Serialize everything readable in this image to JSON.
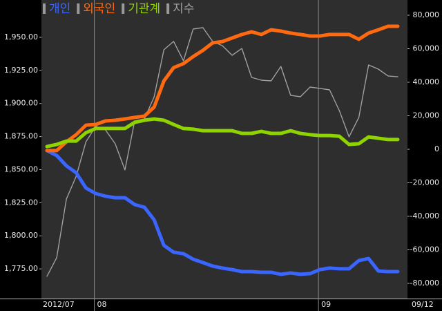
{
  "chart_data": {
    "type": "line",
    "categories": [
      "2012/07",
      null,
      null,
      null,
      null,
      "08",
      null,
      null,
      null,
      null,
      null,
      null,
      null,
      null,
      null,
      null,
      null,
      null,
      null,
      null,
      null,
      null,
      null,
      null,
      null,
      null,
      null,
      null,
      "09",
      null,
      null,
      null,
      null,
      null,
      null,
      null,
      "09/12"
    ],
    "ylim": [
      1752.6,
      1978.2
    ],
    "yticks": [
      {
        "value": 1775,
        "label": "1,775.00"
      },
      {
        "value": 1800,
        "label": "1,800.00"
      },
      {
        "value": 1825,
        "label": "1,825.00"
      },
      {
        "value": 1850,
        "label": "1,850.00"
      },
      {
        "value": 1875,
        "label": "1,875.00"
      },
      {
        "value": 1900,
        "label": "1,900.00"
      },
      {
        "value": 1925,
        "label": "1,925.00"
      },
      {
        "value": 1950,
        "label": "1,950.00"
      }
    ],
    "y2lim": [
      -89072,
      89072
    ],
    "y2ticks": [
      {
        "value": -80000,
        "label": "-80,000"
      },
      {
        "value": -60000,
        "label": "-60,000"
      },
      {
        "value": -40000,
        "label": "-40,000"
      },
      {
        "value": -20000,
        "label": "-20,000"
      },
      0,
      {
        "value": 20000,
        "label": "20,000"
      },
      {
        "value": 40000,
        "label": "40,000"
      },
      {
        "value": 60000,
        "label": "60,000"
      },
      {
        "value": 80000,
        "label": "80,000"
      }
    ],
    "series": [
      {
        "name": "개인",
        "color": "#3a66ff",
        "axis": "y2",
        "values": [
          -800,
          -3700,
          -9900,
          -14000,
          -23100,
          -26400,
          -28000,
          -28900,
          -28900,
          -33000,
          -34600,
          -42100,
          -57300,
          -61400,
          -62300,
          -65600,
          -67600,
          -69700,
          -70900,
          -71800,
          -73000,
          -73000,
          -73400,
          -73400,
          -74600,
          -73800,
          -74600,
          -74200,
          -71800,
          -70900,
          -71300,
          -71300,
          -66400,
          -65200,
          -72600,
          -73000,
          -73000
        ]
      },
      {
        "name": "외국인",
        "color": "#ff6a10",
        "axis": "y2",
        "values": [
          -800,
          -800,
          4500,
          8700,
          14400,
          14800,
          16900,
          17300,
          18100,
          19000,
          19800,
          25200,
          40800,
          48700,
          51100,
          55300,
          59000,
          63500,
          64300,
          66400,
          68500,
          70100,
          68500,
          71300,
          70500,
          69300,
          68500,
          67600,
          67600,
          68500,
          68500,
          68500,
          65600,
          69300,
          71300,
          73400,
          73400
        ]
      },
      {
        "name": "기관계",
        "color": "#8fd400",
        "axis": "y2",
        "values": [
          1600,
          2900,
          4900,
          4900,
          9900,
          12400,
          12400,
          12400,
          12400,
          16100,
          17300,
          18100,
          17300,
          14800,
          12400,
          12000,
          11100,
          11100,
          11100,
          11100,
          9500,
          9500,
          10700,
          9500,
          9500,
          11100,
          9500,
          8700,
          8200,
          8200,
          7800,
          2900,
          3300,
          7400,
          6600,
          5800,
          5800
        ]
      },
      {
        "name": "지수",
        "color": "#a0a0a0",
        "values": [
          1769.4,
          1783.5,
          1827.9,
          1845.0,
          1871.0,
          1882.7,
          1880.0,
          1869.6,
          1849.8,
          1886.8,
          1888.4,
          1905.0,
          1940.6,
          1946.9,
          1932.3,
          1956.3,
          1957.3,
          1946.9,
          1943.7,
          1936.4,
          1941.6,
          1919.7,
          1917.6,
          1917.1,
          1928.0,
          1906.2,
          1905.1,
          1912.4,
          1911.4,
          1910.3,
          1894.7,
          1874.8,
          1889.5,
          1929.1,
          1926.0,
          1920.8,
          1920.2
        ]
      }
    ]
  }
}
